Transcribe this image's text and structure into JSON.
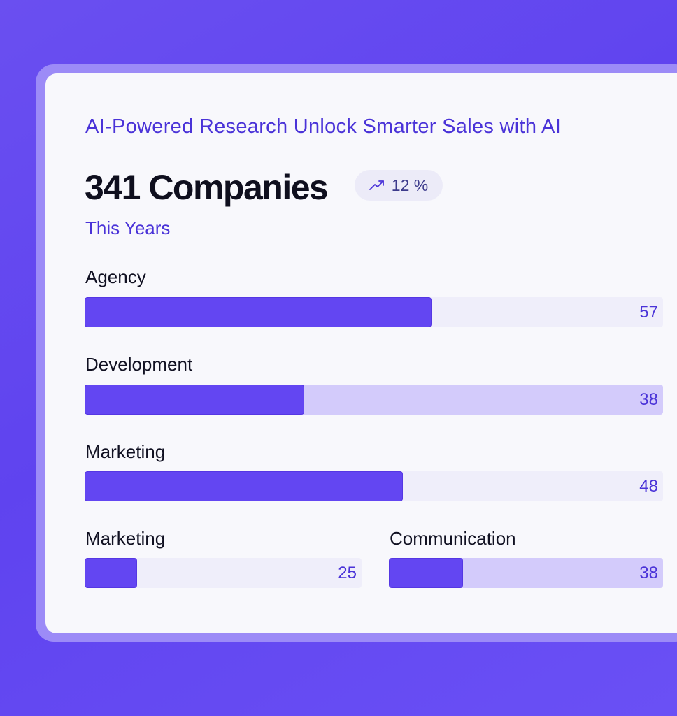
{
  "header": {
    "headline": "AI-Powered Research Unlock Smarter Sales with AI",
    "count_text": "341 Companies",
    "trend": {
      "icon": "trend-up-icon",
      "text": "12 %"
    },
    "period": "This Years"
  },
  "categories": [
    {
      "label": "Agency",
      "value": "57",
      "fill_fraction": 0.6
    },
    {
      "label": "Development",
      "value": "38",
      "fill_fraction": 0.38
    },
    {
      "label": "Marketing",
      "value": "48",
      "fill_fraction": 0.55
    },
    {
      "label": "Marketing",
      "value": "25",
      "fill_fraction": 0.19
    },
    {
      "label": "Communication",
      "value": "38",
      "fill_fraction": 0.27
    }
  ],
  "colors": {
    "accent": "#6346f2",
    "headline": "#4a33d8",
    "track_light": "#efeefa",
    "track_medium": "#d3cbfb"
  }
}
